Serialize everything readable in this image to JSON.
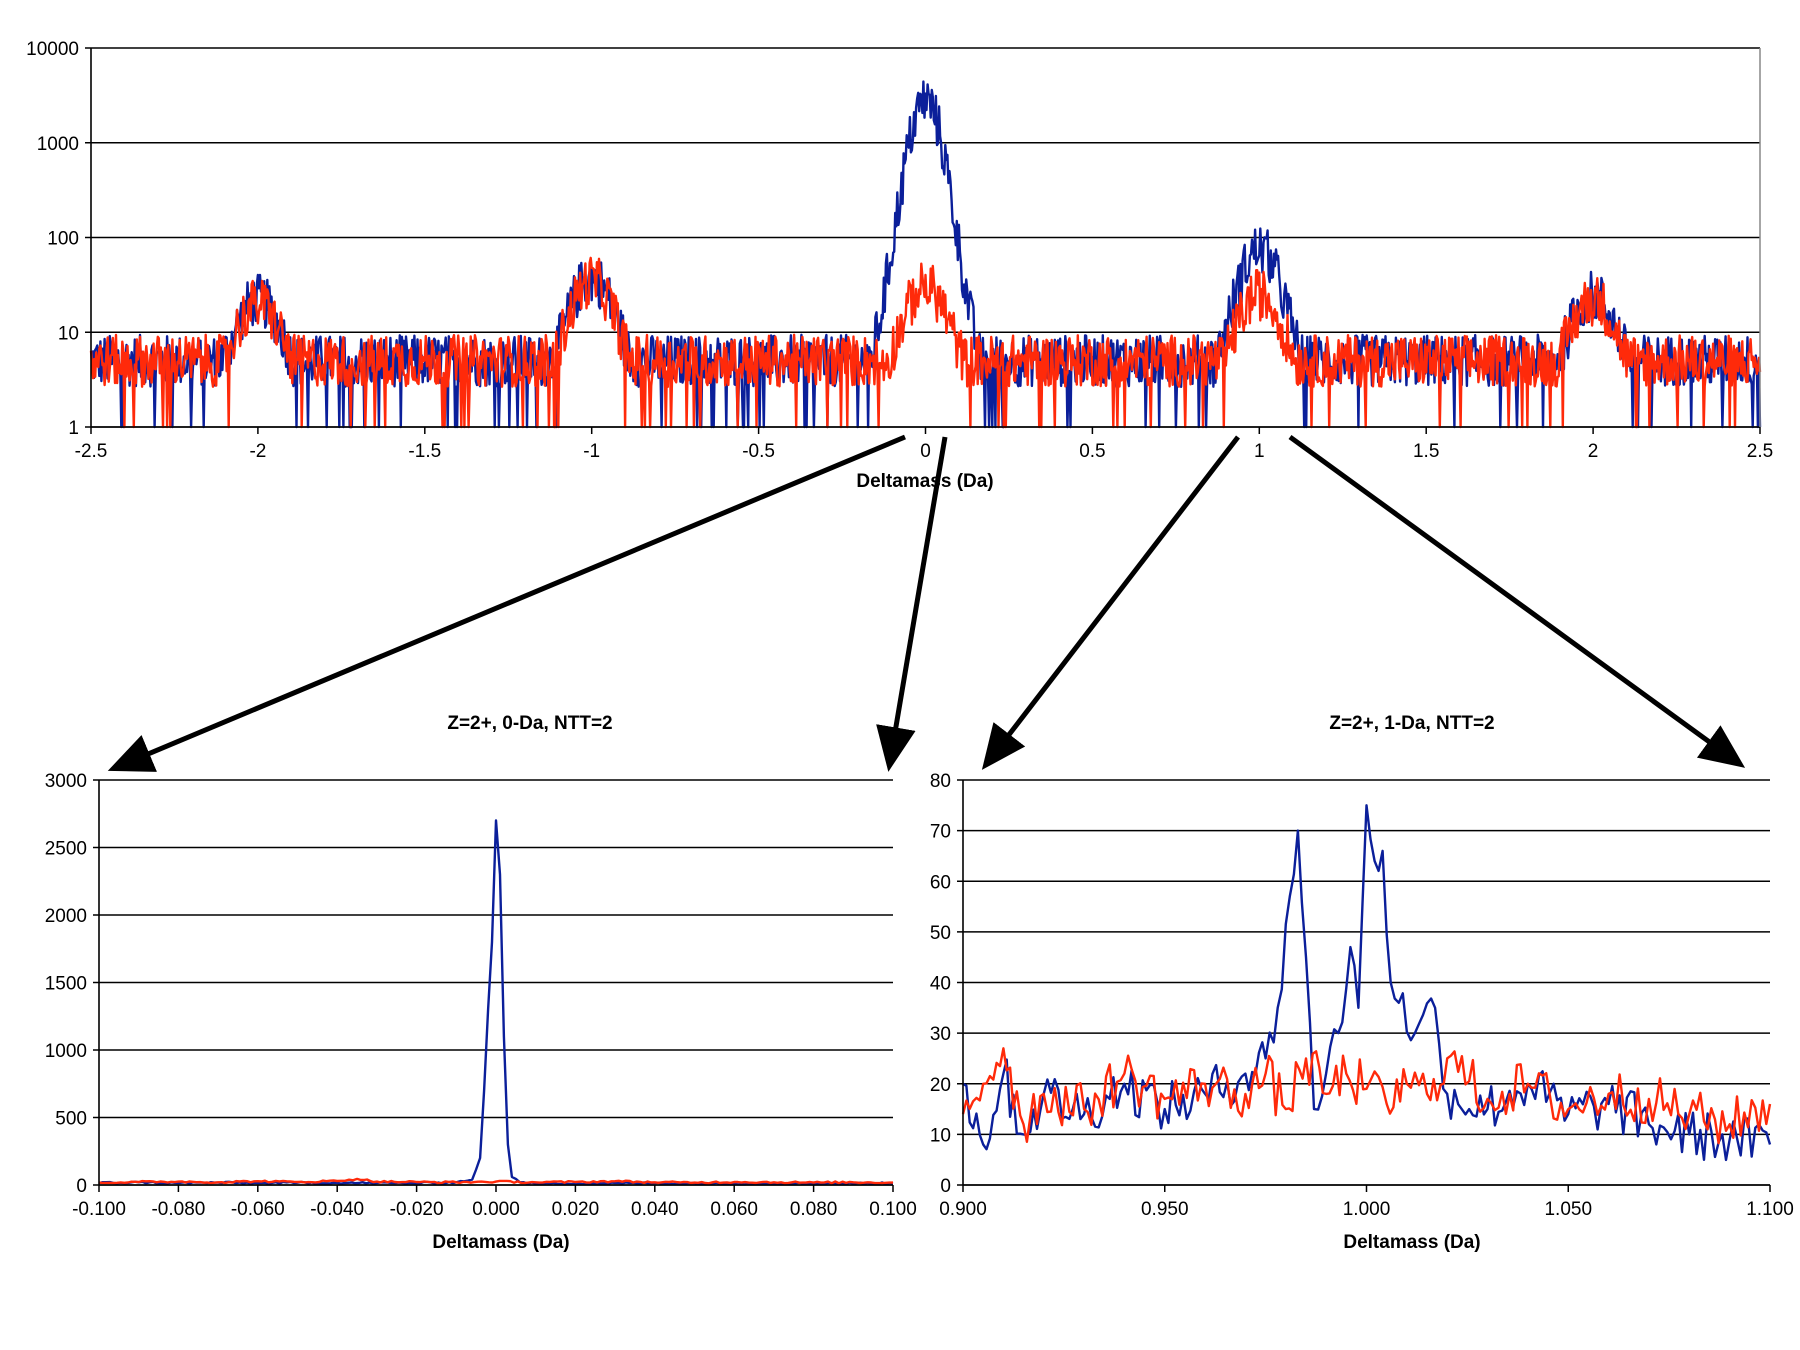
{
  "colors": {
    "series_blue": "#0B1F9A",
    "series_red": "#FF2A0A",
    "grid": "#000000",
    "frame": "#888888"
  },
  "chart_data": [
    {
      "id": "overview",
      "type": "line",
      "title": "",
      "xlabel": "Deltamass (Da)",
      "ylabel": "",
      "xlim": [
        -2.5,
        2.5
      ],
      "ylim": [
        1,
        10000
      ],
      "yscale": "log",
      "grid": "horizontal",
      "x_ticks": [
        "-2.5",
        "-2",
        "-1.5",
        "-1",
        "-0.5",
        "0",
        "0.5",
        "1",
        "1.5",
        "2",
        "2.5"
      ],
      "y_ticks": [
        "1",
        "10",
        "100",
        "1000",
        "10000"
      ],
      "series": [
        {
          "color": "#0B1F9A",
          "x": [
            -2.5,
            -2.0,
            -1.5,
            -1.0,
            -0.5,
            0.0,
            0.5,
            1.0,
            1.5,
            2.0,
            2.5
          ],
          "y": [
            5,
            22,
            5,
            38,
            5,
            2800,
            5,
            75,
            5,
            24,
            5
          ]
        },
        {
          "color": "#FF2A0A",
          "x": [
            -2.5,
            -2.0,
            -1.5,
            -1.0,
            -0.5,
            0.0,
            0.5,
            1.0,
            1.5,
            2.0,
            2.5
          ],
          "y": [
            5,
            20,
            5,
            35,
            5,
            30,
            5,
            25,
            5,
            22,
            5
          ]
        }
      ]
    },
    {
      "id": "zoom-0",
      "type": "line",
      "title": "Z=2+, 0-Da, NTT=2",
      "xlabel": "Deltamass (Da)",
      "ylabel": "",
      "xlim": [
        -0.1,
        0.1
      ],
      "ylim": [
        0,
        3000
      ],
      "grid": "horizontal",
      "x_ticks": [
        "-0.100",
        "-0.080",
        "-0.060",
        "-0.040",
        "-0.020",
        "0.000",
        "0.020",
        "0.040",
        "0.060",
        "0.080",
        "0.100"
      ],
      "y_ticks": [
        "0",
        "500",
        "1000",
        "1500",
        "2000",
        "2500",
        "3000"
      ],
      "series": [
        {
          "color": "#0B1F9A",
          "x": [
            -0.1,
            -0.09,
            -0.08,
            -0.07,
            -0.06,
            -0.05,
            -0.04,
            -0.03,
            -0.02,
            -0.01,
            -0.006,
            -0.004,
            -0.003,
            -0.002,
            -0.001,
            0.0,
            0.001,
            0.002,
            0.003,
            0.004,
            0.006,
            0.01,
            0.02,
            0.04,
            0.06,
            0.08,
            0.1
          ],
          "y": [
            15,
            20,
            15,
            18,
            14,
            17,
            16,
            15,
            15,
            20,
            40,
            200,
            700,
            1300,
            1800,
            2700,
            2300,
            1100,
            300,
            60,
            20,
            10,
            12,
            14,
            10,
            13,
            12
          ]
        },
        {
          "color": "#FF2A0A",
          "x": [
            -0.1,
            -0.09,
            -0.08,
            -0.07,
            -0.06,
            -0.05,
            -0.04,
            -0.035,
            -0.03,
            -0.02,
            -0.01,
            0.0,
            0.01,
            0.02,
            0.03,
            0.04,
            0.05,
            0.06,
            0.07,
            0.08,
            0.09,
            0.1
          ],
          "y": [
            18,
            22,
            25,
            20,
            28,
            22,
            30,
            45,
            25,
            22,
            20,
            25,
            20,
            22,
            28,
            20,
            18,
            22,
            20,
            18,
            20,
            18
          ]
        }
      ]
    },
    {
      "id": "zoom-1",
      "type": "line",
      "title": "Z=2+, 1-Da, NTT=2",
      "xlabel": "Deltamass (Da)",
      "ylabel": "",
      "xlim": [
        0.9,
        1.1
      ],
      "ylim": [
        0,
        80
      ],
      "grid": "horizontal",
      "x_ticks": [
        "0.900",
        "0.950",
        "1.000",
        "1.050",
        "1.100"
      ],
      "y_ticks": [
        "0",
        "10",
        "20",
        "30",
        "40",
        "50",
        "60",
        "70",
        "80"
      ],
      "series": [
        {
          "color": "#0B1F9A",
          "x": [
            0.9,
            0.905,
            0.91,
            0.915,
            0.92,
            0.93,
            0.94,
            0.95,
            0.96,
            0.97,
            0.975,
            0.978,
            0.981,
            0.983,
            0.985,
            0.987,
            0.99,
            0.993,
            0.996,
            0.998,
            1.0,
            1.002,
            1.004,
            1.006,
            1.008,
            1.012,
            1.017,
            1.02,
            1.03,
            1.04,
            1.05,
            1.06,
            1.07,
            1.08,
            1.09,
            1.1
          ],
          "y": [
            20,
            8,
            22,
            10,
            18,
            14,
            20,
            15,
            18,
            22,
            25,
            35,
            57,
            70,
            45,
            15,
            22,
            30,
            47,
            35,
            75,
            64,
            66,
            40,
            36,
            30,
            35,
            18,
            15,
            20,
            14,
            16,
            12,
            10,
            9,
            8
          ]
        },
        {
          "color": "#FF2A0A",
          "x": [
            0.9,
            0.905,
            0.91,
            0.915,
            0.92,
            0.93,
            0.94,
            0.95,
            0.96,
            0.97,
            0.975,
            0.98,
            0.985,
            0.99,
            0.995,
            1.0,
            1.005,
            1.01,
            1.015,
            1.02,
            1.03,
            1.04,
            1.05,
            1.06,
            1.07,
            1.08,
            1.09,
            1.1
          ],
          "y": [
            14,
            20,
            27,
            12,
            18,
            15,
            22,
            17,
            20,
            18,
            22,
            15,
            25,
            18,
            22,
            19,
            16,
            20,
            18,
            25,
            17,
            20,
            15,
            18,
            17,
            14,
            12,
            16
          ]
        }
      ]
    }
  ]
}
